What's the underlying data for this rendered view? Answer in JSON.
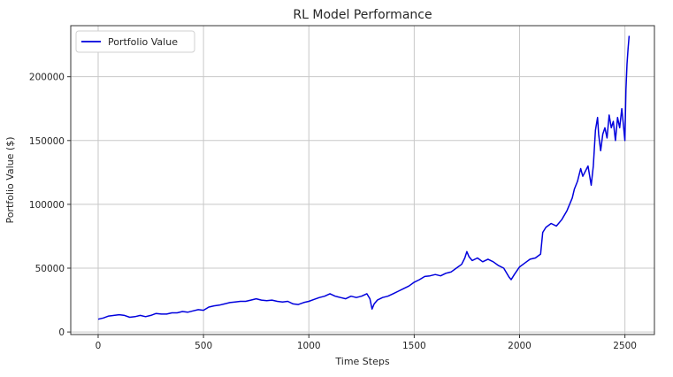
{
  "chart_data": {
    "type": "line",
    "title": "RL Model Performance",
    "xlabel": "Time Steps",
    "ylabel": "Portfolio Value ($)",
    "xlim": [
      -130,
      2640
    ],
    "ylim": [
      -2000,
      240000
    ],
    "xticks": [
      0,
      500,
      1000,
      1500,
      2000,
      2500
    ],
    "yticks": [
      0,
      50000,
      100000,
      150000,
      200000
    ],
    "grid": true,
    "legend_position": "top-left",
    "series": [
      {
        "name": "Portfolio Value",
        "color": "#0000dd",
        "x": [
          0,
          25,
          50,
          75,
          100,
          125,
          150,
          175,
          200,
          225,
          250,
          275,
          300,
          325,
          350,
          375,
          400,
          425,
          450,
          475,
          500,
          525,
          550,
          575,
          600,
          625,
          650,
          675,
          700,
          725,
          750,
          775,
          800,
          825,
          850,
          875,
          900,
          925,
          950,
          975,
          1000,
          1025,
          1050,
          1075,
          1100,
          1125,
          1150,
          1175,
          1200,
          1225,
          1250,
          1275,
          1290,
          1300,
          1310,
          1325,
          1350,
          1375,
          1400,
          1425,
          1450,
          1475,
          1500,
          1525,
          1550,
          1575,
          1600,
          1625,
          1650,
          1675,
          1700,
          1725,
          1740,
          1750,
          1760,
          1775,
          1800,
          1825,
          1850,
          1875,
          1900,
          1925,
          1950,
          1960,
          1975,
          2000,
          2025,
          2050,
          2075,
          2100,
          2110,
          2125,
          2150,
          2175,
          2200,
          2225,
          2250,
          2260,
          2275,
          2290,
          2300,
          2325,
          2340,
          2350,
          2360,
          2370,
          2375,
          2385,
          2395,
          2405,
          2415,
          2425,
          2435,
          2445,
          2455,
          2465,
          2475,
          2485,
          2495,
          2500,
          2505,
          2510,
          2515,
          2520
        ],
        "y": [
          10000,
          11000,
          12500,
          13000,
          13500,
          13000,
          11500,
          12000,
          13000,
          12000,
          13000,
          14500,
          14000,
          14000,
          15000,
          15000,
          16000,
          15500,
          16500,
          17500,
          17000,
          19500,
          20500,
          21000,
          22000,
          23000,
          23500,
          24000,
          24000,
          25000,
          26000,
          25000,
          24500,
          25000,
          24000,
          23500,
          24000,
          22000,
          21500,
          23000,
          24000,
          25500,
          27000,
          28000,
          30000,
          28000,
          27000,
          26000,
          28000,
          27000,
          28000,
          30000,
          26000,
          18000,
          22000,
          25000,
          27000,
          28000,
          30000,
          32000,
          34000,
          36000,
          39000,
          41000,
          43500,
          44000,
          45000,
          44000,
          46000,
          47000,
          50000,
          53000,
          58000,
          63000,
          59000,
          56000,
          58000,
          55000,
          57000,
          55000,
          52000,
          50000,
          43000,
          41000,
          45000,
          51000,
          54000,
          57000,
          58000,
          61000,
          78000,
          82000,
          85000,
          83000,
          88000,
          95000,
          105000,
          112000,
          118000,
          128000,
          122000,
          130000,
          115000,
          130000,
          158000,
          168000,
          155000,
          142000,
          155000,
          160000,
          152000,
          170000,
          160000,
          165000,
          150000,
          168000,
          160000,
          175000,
          158000,
          150000,
          190000,
          210000,
          222000,
          232000
        ]
      }
    ]
  }
}
